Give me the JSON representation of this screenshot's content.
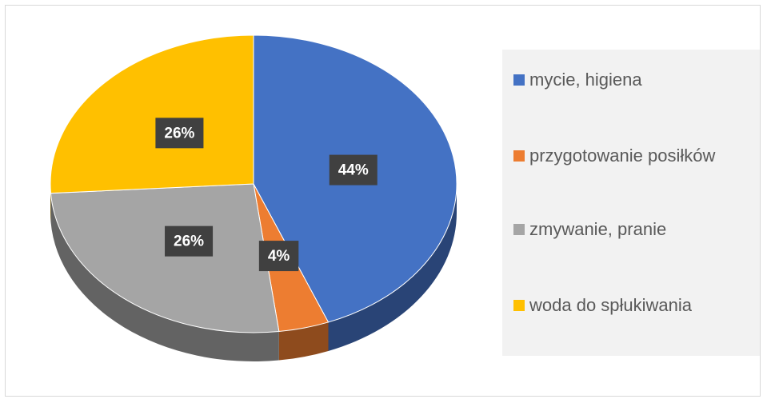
{
  "chart_data": {
    "type": "pie",
    "categories": [
      "mycie, higiena",
      "przygotowanie posiłków",
      "zmywanie, pranie",
      "woda do spłukiwania"
    ],
    "values": [
      44,
      4,
      26,
      26
    ],
    "value_labels": [
      "44%",
      "4%",
      "26%",
      "26%"
    ],
    "colors": [
      "#4472c4",
      "#ed7d31",
      "#a5a5a5",
      "#ffc000"
    ],
    "legend": "right"
  }
}
